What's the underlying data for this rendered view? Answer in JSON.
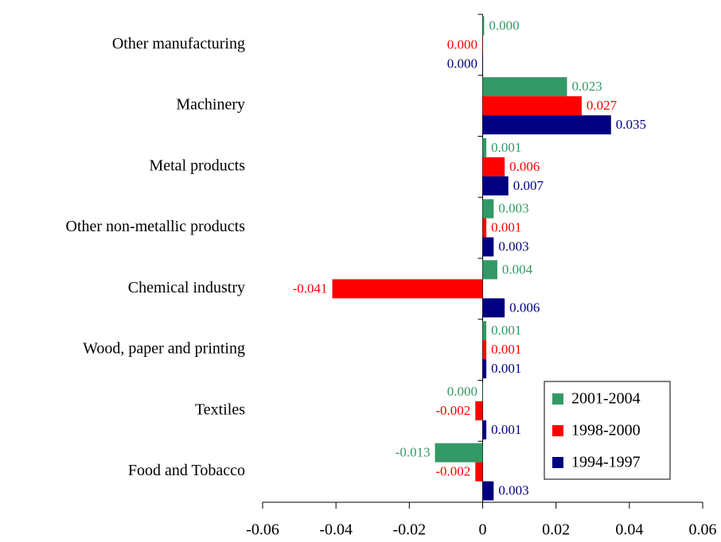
{
  "chart_data": {
    "type": "hbar",
    "categories": [
      "Other manufacturing",
      "Machinery",
      "Metal products",
      "Other non-metallic products",
      "Chemical industry",
      "Wood, paper and printing",
      "Textiles",
      "Food and Tobacco"
    ],
    "series": [
      {
        "name": "2001-2004",
        "color": "#339966",
        "values": [
          0.0004,
          0.023,
          0.001,
          0.003,
          0.004,
          0.001,
          -0.0001,
          -0.013
        ],
        "value_labels": [
          "0.000",
          "0.023",
          "0.001",
          "0.003",
          "0.004",
          "0.001",
          "0.000",
          "-0.013"
        ]
      },
      {
        "name": "1998-2000",
        "color": "#ff0000",
        "values": [
          -0.0001,
          0.027,
          0.006,
          0.001,
          -0.041,
          0.001,
          -0.002,
          -0.002
        ],
        "value_labels": [
          "0.000",
          "0.027",
          "0.006",
          "0.001",
          "-0.041",
          "0.001",
          "-0.002",
          "-0.002"
        ]
      },
      {
        "name": "1994-1997",
        "color": "#000080",
        "values": [
          -0.0001,
          0.035,
          0.007,
          0.003,
          0.006,
          0.001,
          0.001,
          0.003
        ],
        "value_labels": [
          "0.000",
          "0.035",
          "0.007",
          "0.003",
          "0.006",
          "0.001",
          "0.001",
          "0.003"
        ]
      }
    ],
    "xlim": [
      -0.06,
      0.06
    ],
    "xticks": [
      -0.06,
      -0.04,
      -0.02,
      0,
      0.02,
      0.04,
      0.06
    ],
    "legend": "lower right"
  }
}
